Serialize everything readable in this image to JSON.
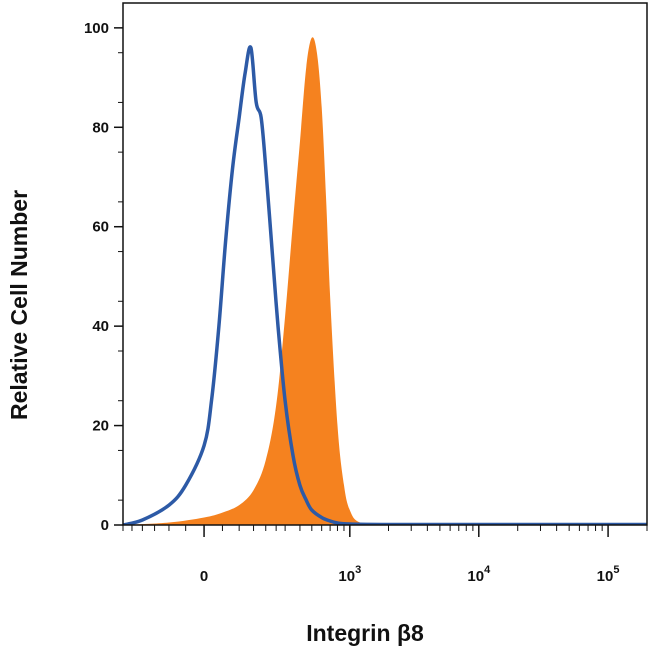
{
  "chart_data": {
    "type": "area",
    "title": "",
    "xlabel": "Integrin β8",
    "ylabel": "Relative Cell Number",
    "x_scale": "biexponential",
    "xlim": [
      -300,
      200000
    ],
    "ylim": [
      0,
      105
    ],
    "grid": false,
    "legend": "none",
    "x_ticks": [
      {
        "value": 0,
        "base": "0",
        "exp": ""
      },
      {
        "value": 1000,
        "base": "10",
        "exp": "3"
      },
      {
        "value": 10000,
        "base": "10",
        "exp": "4"
      },
      {
        "value": 100000,
        "base": "10",
        "exp": "5"
      }
    ],
    "y_ticks": [
      {
        "value": 0,
        "label": "0"
      },
      {
        "value": 20,
        "label": "20"
      },
      {
        "value": 40,
        "label": "40"
      },
      {
        "value": 60,
        "label": "60"
      },
      {
        "value": 80,
        "label": "80"
      },
      {
        "value": 100,
        "label": "100"
      }
    ],
    "series": [
      {
        "style": "filled",
        "color": "#f5821f",
        "x": [
          -300,
          -100,
          0,
          50,
          100,
          150,
          200,
          250,
          300,
          350,
          400,
          450,
          500,
          550,
          600,
          650,
          700,
          800,
          900,
          1000,
          1200,
          2000,
          5000,
          20000,
          200000
        ],
        "y": [
          0,
          0.5,
          1.5,
          2.5,
          4,
          7,
          13,
          24,
          42,
          61,
          77,
          92,
          98,
          95,
          84,
          66,
          46,
          20,
          8,
          3,
          0.5,
          0,
          0,
          0,
          0
        ]
      },
      {
        "style": "outline",
        "color": "#2d5aa6",
        "x": [
          -300,
          -200,
          -100,
          -50,
          0,
          20,
          40,
          60,
          80,
          100,
          120,
          140,
          160,
          180,
          200,
          230,
          260,
          300,
          350,
          400,
          450,
          500,
          600,
          700,
          800,
          1000,
          2000,
          10000,
          200000
        ],
        "y": [
          0,
          1,
          4,
          8,
          16,
          25,
          40,
          58,
          72,
          82,
          91,
          96,
          85,
          82,
          72,
          55,
          40,
          25,
          14,
          8,
          5,
          3,
          1.5,
          0.8,
          0.4,
          0.2,
          0.1,
          0.1,
          0.1
        ]
      }
    ]
  }
}
